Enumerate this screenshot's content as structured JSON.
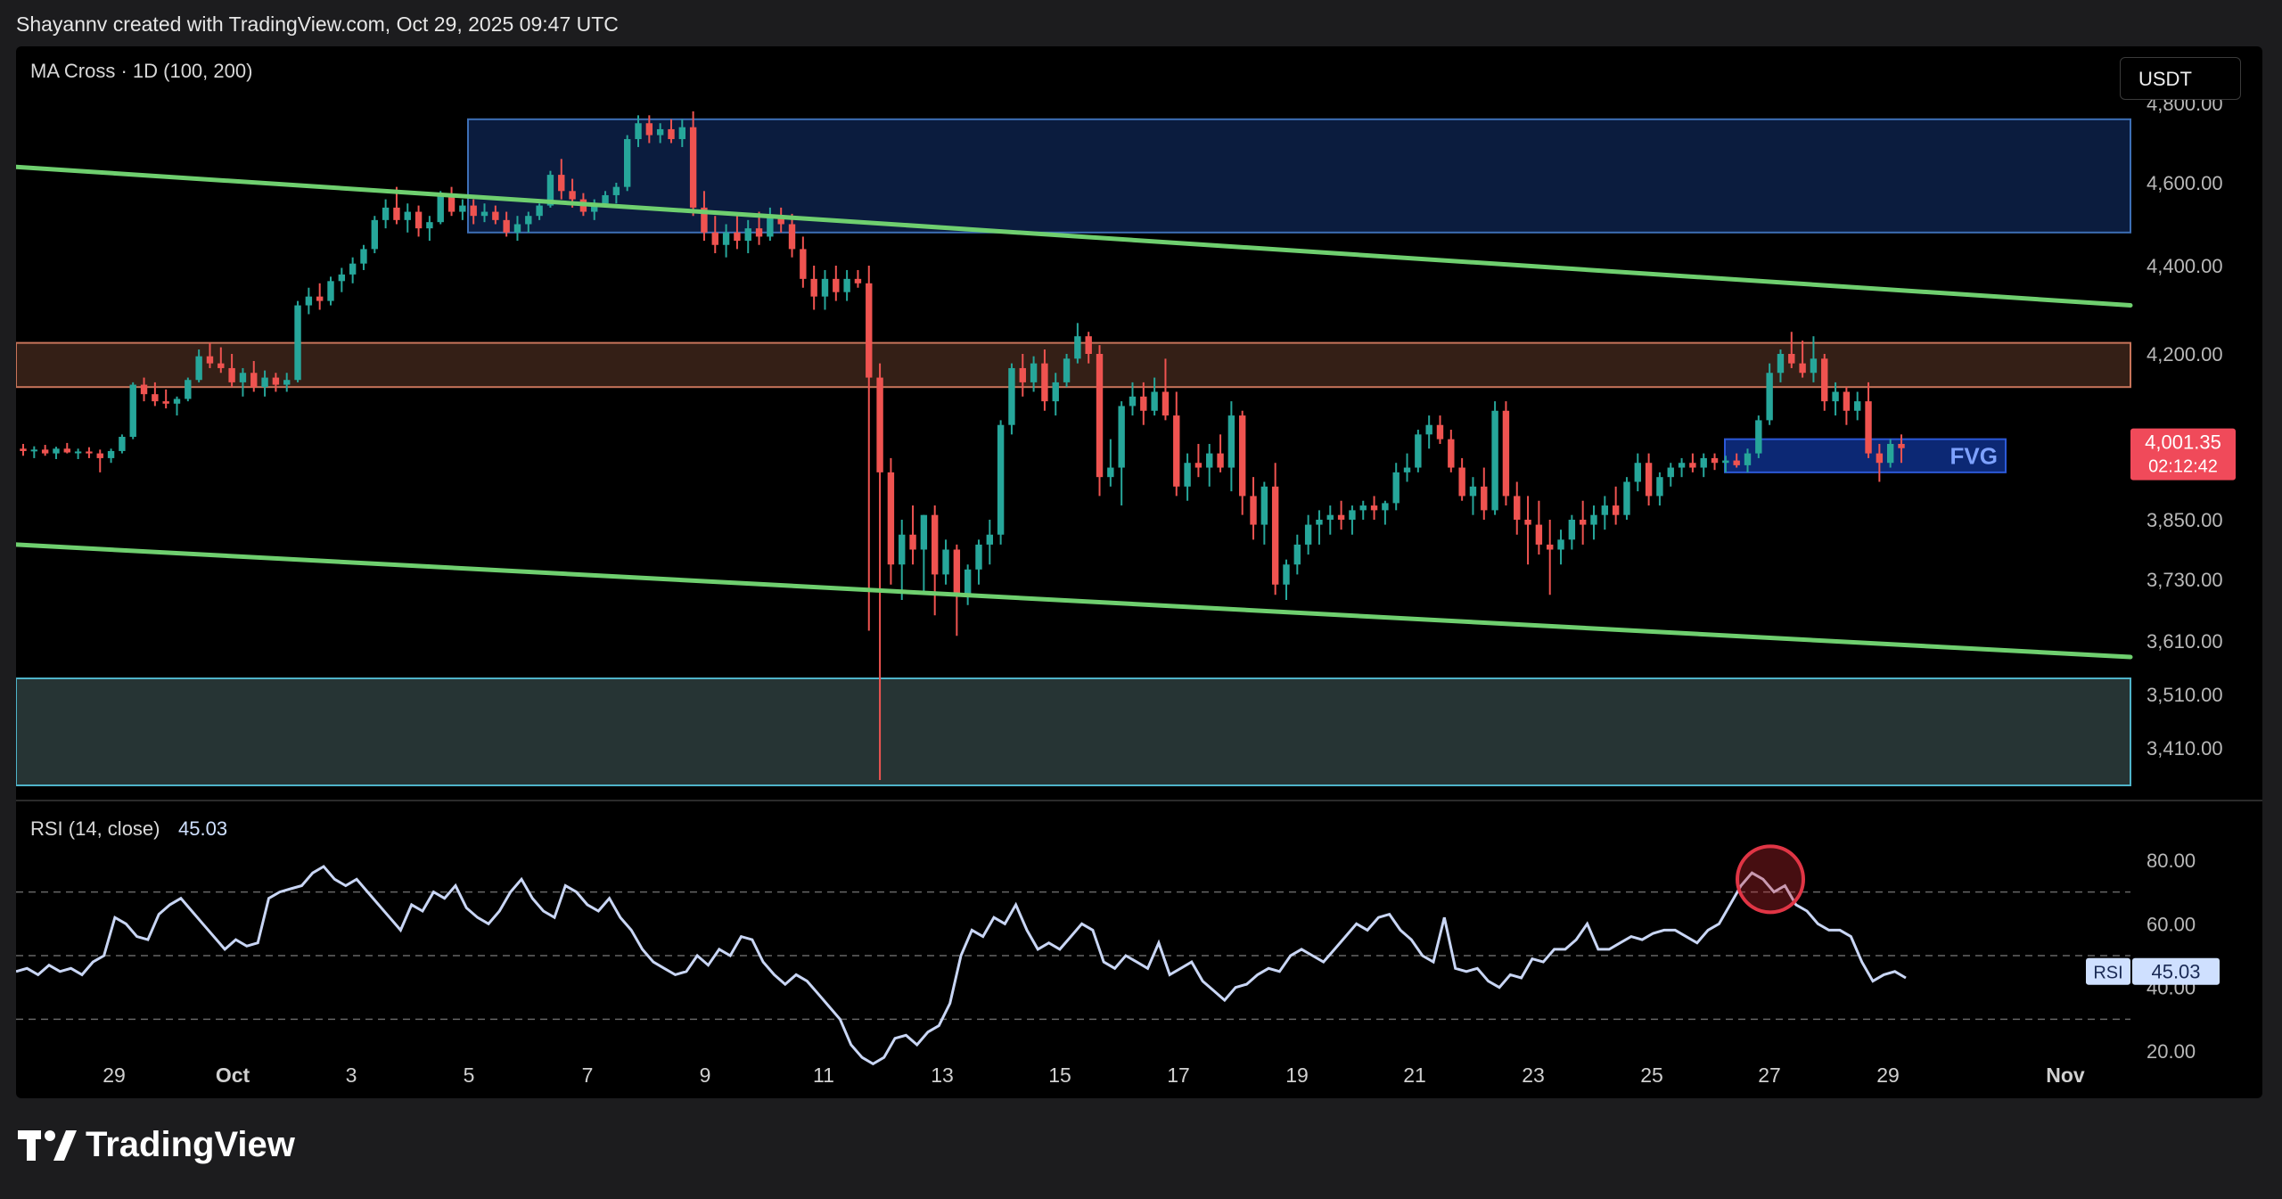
{
  "header": {
    "text": "Shayannv created with TradingView.com, Oct 29, 2025 09:47 UTC"
  },
  "toolbar": {
    "currency": "USDT"
  },
  "main_pane": {
    "label": "MA Cross · 1D (100, 200)"
  },
  "rsi_pane": {
    "label": "RSI (14, close)",
    "value": "45.03",
    "badge_label": "RSI",
    "badge_value": "45.03"
  },
  "price_badge": {
    "price": "4,001.35",
    "countdown": "02:12:42"
  },
  "fvg_label": "FVG",
  "brand": {
    "name": "TradingView"
  },
  "colors": {
    "up": "#26a69a",
    "down": "#ef5350",
    "trendline": "#6fcf6f",
    "rsi_line": "#c9d6f5",
    "fvg_box": "#0d2a7a",
    "supply_zone": "#0c1f45",
    "resistance_zone": "#3a2218",
    "support_zone": "#2a3a3a"
  },
  "chart_data": [
    {
      "type": "candlestick",
      "symbol_label": "MA Cross · 1D (100, 200)",
      "y_axis_ticks": [
        "4,800.00",
        "4,600.00",
        "4,400.00",
        "4,200.00",
        "3,850.00",
        "3,730.00",
        "3,610.00",
        "3,510.00",
        "3,410.00"
      ],
      "x_axis_ticks": [
        "29",
        "Oct",
        "3",
        "5",
        "7",
        "9",
        "11",
        "13",
        "15",
        "17",
        "19",
        "21",
        "23",
        "25",
        "27",
        "29",
        "Nov"
      ],
      "last_price": 4001.35,
      "zones": [
        {
          "name": "supply",
          "top": 4760,
          "bottom": 4480
        },
        {
          "name": "resistance",
          "top": 4225,
          "bottom": 4130
        },
        {
          "name": "FVG",
          "top": 4020,
          "bottom": 3950
        },
        {
          "name": "support",
          "top": 3540,
          "bottom": 3340
        }
      ],
      "trendlines": [
        {
          "name": "upper",
          "start": 4640,
          "end": 4310
        },
        {
          "name": "lower",
          "start": 3800,
          "end": 3580
        }
      ],
      "candles": [
        [
          4000,
          4010,
          3985,
          3995
        ],
        [
          3995,
          4005,
          3980,
          3998
        ],
        [
          3998,
          4008,
          3985,
          3990
        ],
        [
          3990,
          4004,
          3978,
          4000
        ],
        [
          4000,
          4012,
          3990,
          3992
        ],
        [
          3992,
          4000,
          3978,
          3994
        ],
        [
          3994,
          4003,
          3980,
          3990
        ],
        [
          3990,
          3998,
          3950,
          3980
        ],
        [
          3980,
          4000,
          3970,
          3995
        ],
        [
          3995,
          4030,
          3990,
          4025
        ],
        [
          4025,
          4140,
          4020,
          4135
        ],
        [
          4135,
          4150,
          4100,
          4115
        ],
        [
          4115,
          4140,
          4090,
          4100
        ],
        [
          4100,
          4125,
          4085,
          4095
        ],
        [
          4095,
          4110,
          4070,
          4105
        ],
        [
          4105,
          4150,
          4100,
          4145
        ],
        [
          4145,
          4210,
          4140,
          4195
        ],
        [
          4195,
          4225,
          4170,
          4180
        ],
        [
          4180,
          4215,
          4160,
          4170
        ],
        [
          4170,
          4200,
          4130,
          4140
        ],
        [
          4140,
          4170,
          4110,
          4160
        ],
        [
          4160,
          4185,
          4120,
          4130
        ],
        [
          4130,
          4165,
          4110,
          4150
        ],
        [
          4150,
          4160,
          4120,
          4135
        ],
        [
          4135,
          4160,
          4120,
          4145
        ],
        [
          4145,
          4320,
          4140,
          4310
        ],
        [
          4310,
          4350,
          4290,
          4330
        ],
        [
          4330,
          4360,
          4300,
          4320
        ],
        [
          4320,
          4375,
          4310,
          4365
        ],
        [
          4365,
          4395,
          4340,
          4380
        ],
        [
          4380,
          4420,
          4360,
          4405
        ],
        [
          4405,
          4450,
          4390,
          4440
        ],
        [
          4440,
          4520,
          4430,
          4510
        ],
        [
          4510,
          4560,
          4490,
          4540
        ],
        [
          4540,
          4590,
          4500,
          4510
        ],
        [
          4510,
          4550,
          4480,
          4530
        ],
        [
          4530,
          4545,
          4470,
          4490
        ],
        [
          4490,
          4520,
          4460,
          4505
        ],
        [
          4505,
          4580,
          4500,
          4570
        ],
        [
          4570,
          4590,
          4520,
          4530
        ],
        [
          4530,
          4560,
          4510,
          4545
        ],
        [
          4545,
          4560,
          4500,
          4520
        ],
        [
          4520,
          4550,
          4505,
          4530
        ],
        [
          4530,
          4545,
          4500,
          4510
        ],
        [
          4510,
          4530,
          4470,
          4480
        ],
        [
          4480,
          4520,
          4460,
          4500
        ],
        [
          4500,
          4530,
          4480,
          4520
        ],
        [
          4520,
          4550,
          4510,
          4545
        ],
        [
          4545,
          4630,
          4540,
          4620
        ],
        [
          4620,
          4660,
          4560,
          4580
        ],
        [
          4580,
          4610,
          4540,
          4560
        ],
        [
          4560,
          4575,
          4520,
          4530
        ],
        [
          4530,
          4560,
          4510,
          4550
        ],
        [
          4550,
          4580,
          4540,
          4570
        ],
        [
          4570,
          4600,
          4550,
          4590
        ],
        [
          4590,
          4720,
          4580,
          4710
        ],
        [
          4710,
          4770,
          4690,
          4750
        ],
        [
          4750,
          4770,
          4700,
          4720
        ],
        [
          4720,
          4750,
          4700,
          4735
        ],
        [
          4735,
          4760,
          4700,
          4710
        ],
        [
          4710,
          4760,
          4690,
          4740
        ],
        [
          4740,
          4780,
          4520,
          4540
        ],
        [
          4540,
          4580,
          4460,
          4480
        ],
        [
          4480,
          4520,
          4430,
          4450
        ],
        [
          4450,
          4500,
          4420,
          4480
        ],
        [
          4480,
          4520,
          4440,
          4460
        ],
        [
          4460,
          4510,
          4430,
          4490
        ],
        [
          4490,
          4530,
          4450,
          4470
        ],
        [
          4470,
          4540,
          4460,
          4520
        ],
        [
          4520,
          4540,
          4480,
          4500
        ],
        [
          4500,
          4525,
          4420,
          4440
        ],
        [
          4440,
          4470,
          4350,
          4370
        ],
        [
          4370,
          4400,
          4300,
          4330
        ],
        [
          4330,
          4390,
          4300,
          4370
        ],
        [
          4370,
          4400,
          4320,
          4340
        ],
        [
          4340,
          4390,
          4320,
          4370
        ],
        [
          4370,
          4390,
          4350,
          4360
        ],
        [
          4360,
          4400,
          3630,
          4150
        ],
        [
          4150,
          4180,
          3350,
          3950
        ],
        [
          3950,
          3980,
          3720,
          3760
        ],
        [
          3760,
          3850,
          3690,
          3820
        ],
        [
          3820,
          3880,
          3760,
          3790
        ],
        [
          3790,
          3860,
          3700,
          3860
        ],
        [
          3860,
          3880,
          3660,
          3740
        ],
        [
          3740,
          3810,
          3720,
          3790
        ],
        [
          3790,
          3800,
          3620,
          3700
        ],
        [
          3700,
          3760,
          3680,
          3750
        ],
        [
          3750,
          3810,
          3720,
          3800
        ],
        [
          3800,
          3850,
          3760,
          3820
        ],
        [
          3820,
          4060,
          3800,
          4050
        ],
        [
          4050,
          4180,
          4030,
          4170
        ],
        [
          4170,
          4200,
          4110,
          4140
        ],
        [
          4140,
          4195,
          4120,
          4180
        ],
        [
          4180,
          4210,
          4080,
          4100
        ],
        [
          4100,
          4160,
          4070,
          4140
        ],
        [
          4140,
          4200,
          4130,
          4190
        ],
        [
          4190,
          4270,
          4180,
          4240
        ],
        [
          4240,
          4250,
          4180,
          4200
        ],
        [
          4200,
          4220,
          3900,
          3940
        ],
        [
          3940,
          4020,
          3920,
          3960
        ],
        [
          3960,
          4100,
          3880,
          4090
        ],
        [
          4090,
          4140,
          4070,
          4110
        ],
        [
          4110,
          4140,
          4050,
          4080
        ],
        [
          4080,
          4150,
          4070,
          4120
        ],
        [
          4120,
          4190,
          4060,
          4070
        ],
        [
          4070,
          4120,
          3900,
          3920
        ],
        [
          3920,
          3990,
          3890,
          3970
        ],
        [
          3970,
          4010,
          3940,
          3960
        ],
        [
          3960,
          4010,
          3920,
          3990
        ],
        [
          3990,
          4030,
          3950,
          3960
        ],
        [
          3960,
          4100,
          3910,
          4070
        ],
        [
          4070,
          4080,
          3860,
          3900
        ],
        [
          3900,
          3940,
          3810,
          3840
        ],
        [
          3840,
          3930,
          3800,
          3920
        ],
        [
          3920,
          3970,
          3700,
          3720
        ],
        [
          3720,
          3770,
          3690,
          3760
        ],
        [
          3760,
          3820,
          3740,
          3800
        ],
        [
          3800,
          3860,
          3780,
          3840
        ],
        [
          3840,
          3870,
          3800,
          3850
        ],
        [
          3850,
          3880,
          3820,
          3860
        ],
        [
          3860,
          3890,
          3830,
          3850
        ],
        [
          3850,
          3880,
          3820,
          3870
        ],
        [
          3870,
          3890,
          3850,
          3880
        ],
        [
          3880,
          3900,
          3850,
          3870
        ],
        [
          3870,
          3890,
          3840,
          3885
        ],
        [
          3885,
          3970,
          3870,
          3950
        ],
        [
          3950,
          3990,
          3930,
          3960
        ],
        [
          3960,
          4040,
          3950,
          4030
        ],
        [
          4030,
          4070,
          4000,
          4050
        ],
        [
          4050,
          4070,
          4010,
          4020
        ],
        [
          4020,
          4040,
          3950,
          3960
        ],
        [
          3960,
          3980,
          3890,
          3900
        ],
        [
          3900,
          3940,
          3860,
          3920
        ],
        [
          3920,
          3960,
          3850,
          3870
        ],
        [
          3870,
          4100,
          3860,
          4080
        ],
        [
          4080,
          4100,
          3880,
          3900
        ],
        [
          3900,
          3930,
          3820,
          3850
        ],
        [
          3850,
          3900,
          3760,
          3840
        ],
        [
          3840,
          3890,
          3780,
          3800
        ],
        [
          3800,
          3850,
          3700,
          3790
        ],
        [
          3790,
          3830,
          3760,
          3810
        ],
        [
          3810,
          3860,
          3790,
          3850
        ],
        [
          3850,
          3890,
          3800,
          3840
        ],
        [
          3840,
          3880,
          3810,
          3860
        ],
        [
          3860,
          3900,
          3830,
          3880
        ],
        [
          3880,
          3920,
          3840,
          3860
        ],
        [
          3860,
          3940,
          3850,
          3930
        ],
        [
          3930,
          3990,
          3910,
          3970
        ],
        [
          3970,
          3990,
          3880,
          3900
        ],
        [
          3900,
          3950,
          3880,
          3940
        ],
        [
          3940,
          3970,
          3920,
          3960
        ],
        [
          3960,
          3980,
          3940,
          3970
        ],
        [
          3970,
          3990,
          3950,
          3960
        ],
        [
          3960,
          3990,
          3940,
          3980
        ],
        [
          3980,
          3990,
          3955,
          3970
        ],
        [
          3970,
          3985,
          3950,
          3975
        ],
        [
          3975,
          3990,
          3960,
          3965
        ],
        [
          3965,
          4000,
          3950,
          3990
        ],
        [
          3990,
          4070,
          3980,
          4060
        ],
        [
          4060,
          4180,
          4050,
          4160
        ],
        [
          4160,
          4210,
          4140,
          4200
        ],
        [
          4200,
          4250,
          4170,
          4180
        ],
        [
          4180,
          4230,
          4150,
          4160
        ],
        [
          4160,
          4240,
          4140,
          4190
        ],
        [
          4190,
          4200,
          4080,
          4100
        ],
        [
          4100,
          4140,
          4070,
          4120
        ],
        [
          4120,
          4130,
          4050,
          4080
        ],
        [
          4080,
          4120,
          4060,
          4100
        ],
        [
          4100,
          4140,
          3980,
          3990
        ],
        [
          3990,
          4010,
          3930,
          3970
        ],
        [
          3970,
          4020,
          3960,
          4010
        ],
        [
          4010,
          4030,
          3970,
          4001
        ]
      ]
    },
    {
      "type": "line",
      "name": "RSI (14, close)",
      "y_axis_ticks": [
        "80.00",
        "60.00",
        "40.00",
        "20.00"
      ],
      "levels": [
        70,
        50,
        30
      ],
      "ylim": [
        10,
        90
      ],
      "values": [
        45,
        46,
        44,
        47,
        45,
        46,
        44,
        48,
        50,
        62,
        60,
        56,
        55,
        63,
        66,
        68,
        64,
        60,
        56,
        52,
        55,
        53,
        54,
        68,
        70,
        71,
        72,
        76,
        78,
        74,
        72,
        74,
        70,
        66,
        62,
        58,
        66,
        64,
        70,
        68,
        72,
        65,
        62,
        60,
        64,
        70,
        74,
        68,
        64,
        62,
        72,
        70,
        66,
        64,
        68,
        62,
        58,
        52,
        48,
        46,
        44,
        45,
        50,
        47,
        52,
        50,
        56,
        55,
        48,
        44,
        41,
        44,
        42,
        38,
        34,
        30,
        22,
        18,
        16,
        18,
        24,
        25,
        22,
        26,
        28,
        35,
        50,
        58,
        56,
        62,
        60,
        66,
        58,
        52,
        54,
        52,
        56,
        60,
        58,
        48,
        46,
        50,
        48,
        46,
        54,
        44,
        46,
        48,
        42,
        39,
        36,
        40,
        41,
        44,
        46,
        45,
        50,
        52,
        50,
        48,
        52,
        56,
        60,
        58,
        62,
        63,
        58,
        55,
        50,
        48,
        62,
        46,
        45,
        46,
        42,
        40,
        44,
        43,
        49,
        48,
        52,
        52,
        55,
        60,
        52,
        52,
        54,
        56,
        55,
        57,
        58,
        58,
        56,
        54,
        58,
        60,
        66,
        72,
        76,
        74,
        70,
        72,
        66,
        64,
        60,
        58,
        58,
        56,
        48,
        42,
        44,
        45,
        43
      ],
      "current": 45.03
    }
  ]
}
